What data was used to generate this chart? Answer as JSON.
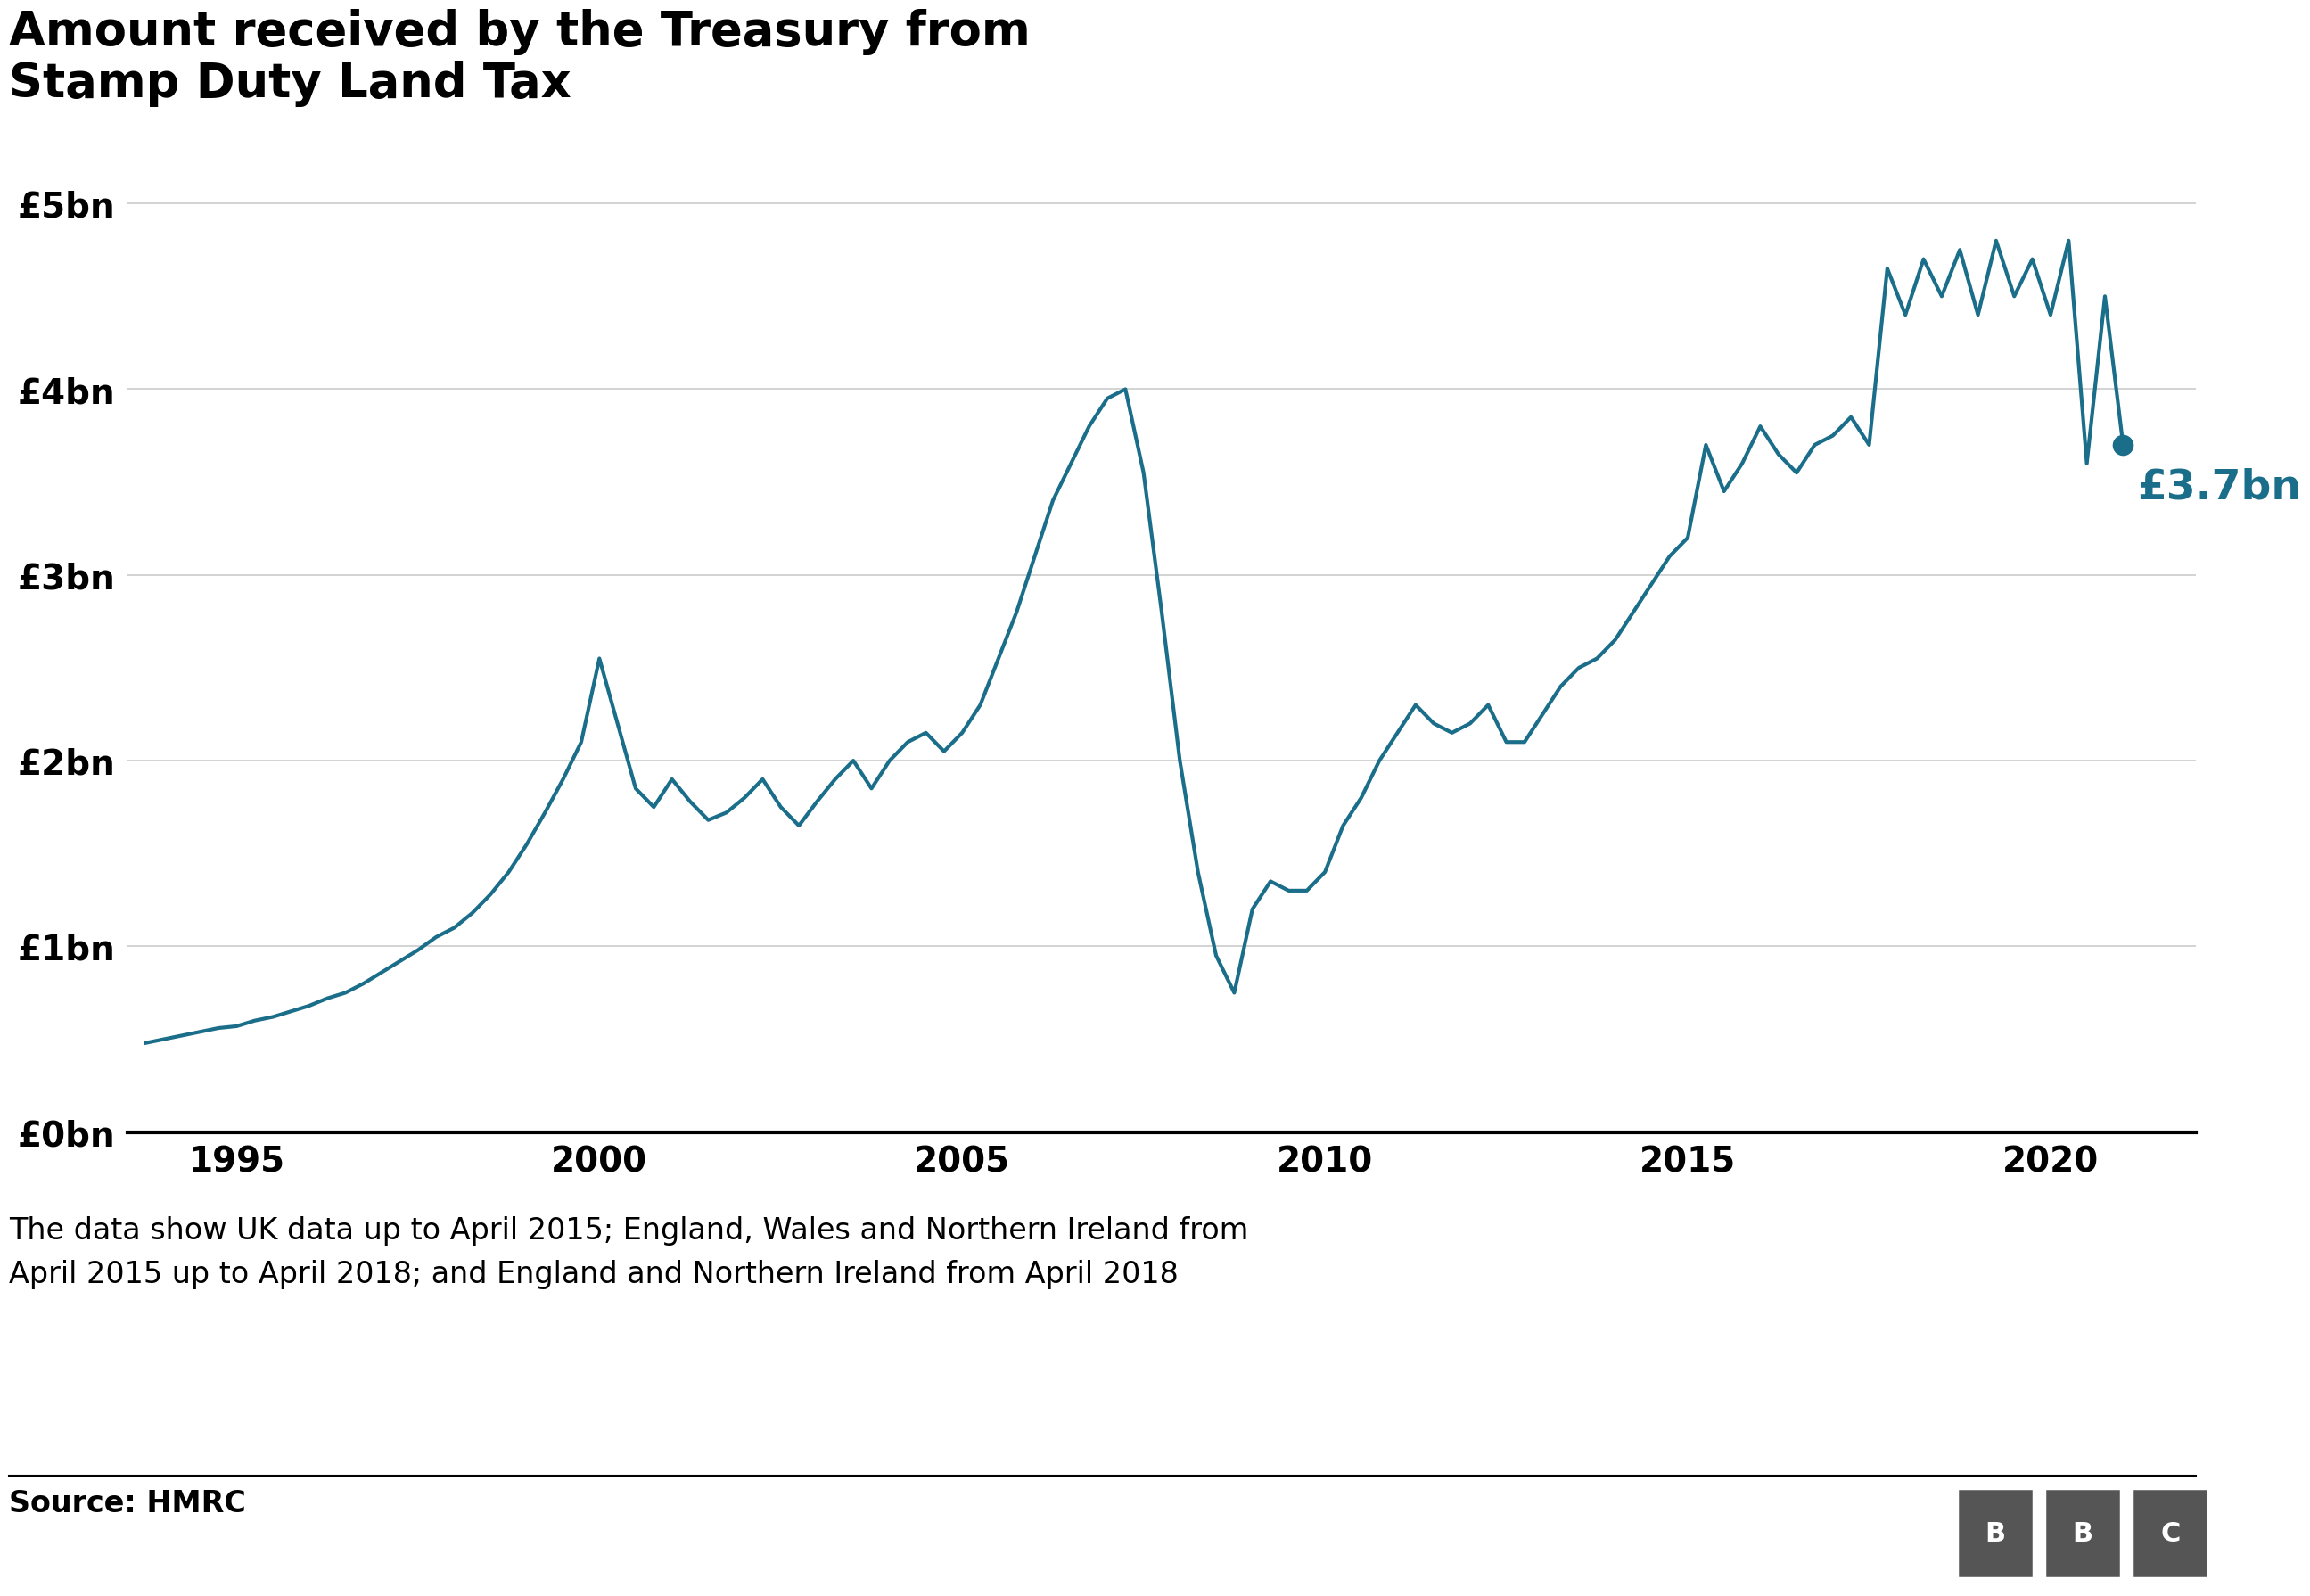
{
  "title": "Amount received by the Treasury from\nStamp Duty Land Tax",
  "line_color": "#1a6e8a",
  "background_color": "#ffffff",
  "annotation_label": "£3.7bn",
  "annotation_color": "#1a6e8a",
  "source_text": "Source: HMRC",
  "footnote": "The data show UK data up to April 2015; England, Wales and Northern Ireland from\nApril 2015 up to April 2018; and England and Northern Ireland from April 2018",
  "ytick_labels": [
    "£0bn",
    "£1bn",
    "£2bn",
    "£3bn",
    "£4bn",
    "£5bn"
  ],
  "ytick_values": [
    0,
    1,
    2,
    3,
    4,
    5
  ],
  "ylim": [
    0,
    5.5
  ],
  "xlim": [
    1993.5,
    2022.0
  ],
  "xtick_values": [
    1995,
    2000,
    2005,
    2010,
    2015,
    2020
  ],
  "x": [
    1993.75,
    1994.0,
    1994.25,
    1994.5,
    1994.75,
    1995.0,
    1995.25,
    1995.5,
    1995.75,
    1996.0,
    1996.25,
    1996.5,
    1996.75,
    1997.0,
    1997.25,
    1997.5,
    1997.75,
    1998.0,
    1998.25,
    1998.5,
    1998.75,
    1999.0,
    1999.25,
    1999.5,
    1999.75,
    2000.0,
    2000.25,
    2000.5,
    2000.75,
    2001.0,
    2001.25,
    2001.5,
    2001.75,
    2002.0,
    2002.25,
    2002.5,
    2002.75,
    2003.0,
    2003.25,
    2003.5,
    2003.75,
    2004.0,
    2004.25,
    2004.5,
    2004.75,
    2005.0,
    2005.25,
    2005.5,
    2005.75,
    2006.0,
    2006.25,
    2006.5,
    2006.75,
    2007.0,
    2007.25,
    2007.5,
    2007.75,
    2008.0,
    2008.25,
    2008.5,
    2008.75,
    2009.0,
    2009.25,
    2009.5,
    2009.75,
    2010.0,
    2010.25,
    2010.5,
    2010.75,
    2011.0,
    2011.25,
    2011.5,
    2011.75,
    2012.0,
    2012.25,
    2012.5,
    2012.75,
    2013.0,
    2013.25,
    2013.5,
    2013.75,
    2014.0,
    2014.25,
    2014.5,
    2014.75,
    2015.0,
    2015.25,
    2015.5,
    2015.75,
    2016.0,
    2016.25,
    2016.5,
    2016.75,
    2017.0,
    2017.25,
    2017.5,
    2017.75,
    2018.0,
    2018.25,
    2018.5,
    2018.75,
    2019.0,
    2019.25,
    2019.5,
    2019.75,
    2020.0,
    2020.25,
    2020.5,
    2020.75,
    2021.0
  ],
  "y": [
    0.48,
    0.5,
    0.52,
    0.54,
    0.56,
    0.57,
    0.6,
    0.62,
    0.65,
    0.68,
    0.72,
    0.75,
    0.8,
    0.86,
    0.92,
    0.98,
    1.05,
    1.1,
    1.18,
    1.28,
    1.4,
    1.55,
    1.72,
    1.9,
    2.1,
    2.55,
    2.2,
    1.85,
    1.75,
    1.9,
    1.78,
    1.68,
    1.72,
    1.8,
    1.9,
    1.75,
    1.65,
    1.78,
    1.9,
    2.0,
    1.85,
    2.0,
    2.1,
    2.15,
    2.05,
    2.15,
    2.3,
    2.55,
    2.8,
    3.1,
    3.4,
    3.6,
    3.8,
    3.95,
    4.0,
    3.55,
    2.8,
    2.0,
    1.4,
    0.95,
    0.75,
    1.2,
    1.35,
    1.3,
    1.3,
    1.4,
    1.65,
    1.8,
    2.0,
    2.15,
    2.3,
    2.2,
    2.15,
    2.2,
    2.3,
    2.1,
    2.1,
    2.25,
    2.4,
    2.5,
    2.55,
    2.65,
    2.8,
    2.95,
    3.1,
    3.2,
    3.7,
    3.45,
    3.6,
    3.8,
    3.65,
    3.55,
    3.7,
    3.75,
    3.85,
    3.7,
    4.65,
    4.4,
    4.7,
    4.5,
    4.75,
    4.4,
    4.8,
    4.5,
    4.7,
    4.4,
    4.8,
    3.6,
    4.5,
    3.7
  ],
  "last_x": 2021.0,
  "last_y": 3.7,
  "title_fontsize": 38,
  "tick_fontsize": 28,
  "annotation_fontsize": 34,
  "source_fontsize": 24,
  "footnote_fontsize": 24
}
